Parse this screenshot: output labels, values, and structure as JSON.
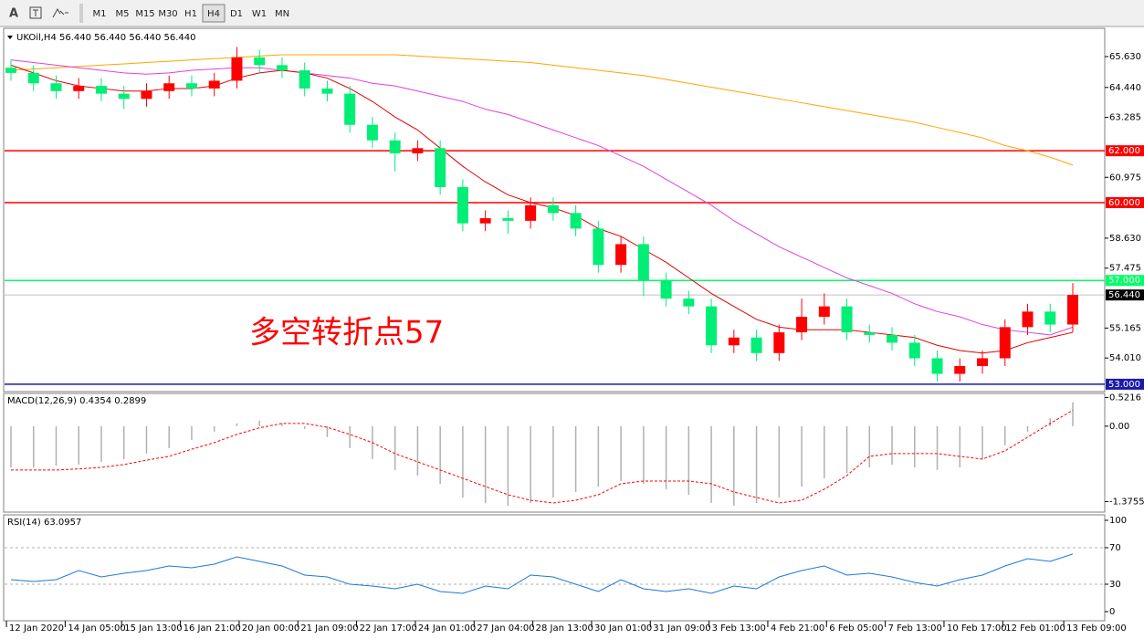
{
  "toolbar": {
    "font_tool": "A",
    "timeframes": [
      "M1",
      "M5",
      "M15",
      "M30",
      "H1",
      "H4",
      "D1",
      "W1",
      "MN"
    ],
    "active": "H4"
  },
  "chart_data": [
    {
      "type": "candlestick",
      "title": "UKOil,H4 56.440 56.440 56.440 56.440",
      "annotation": "多空转折点57",
      "annotation_color": "#ff0000",
      "up_color": "#ff0000",
      "down_color": "#00ee76",
      "open": [
        65.2,
        65.0,
        64.6,
        64.3,
        64.5,
        64.2,
        64.0,
        64.3,
        64.6,
        64.4,
        64.7,
        65.6,
        65.3,
        65.1,
        64.4,
        64.2,
        63.0,
        62.4,
        61.9,
        62.1,
        60.6,
        59.2,
        59.4,
        59.3,
        59.9,
        59.6,
        59.0,
        57.6,
        58.4,
        57.0,
        56.3,
        56.0,
        54.5,
        54.8,
        54.2,
        55.0,
        55.6,
        56.0,
        55.0,
        54.9,
        54.6,
        54.0,
        53.4,
        53.7,
        54.0,
        55.2,
        55.8,
        55.3
      ],
      "high": [
        65.5,
        65.3,
        64.9,
        64.8,
        64.8,
        64.5,
        64.6,
        64.9,
        64.9,
        65.0,
        66.0,
        65.9,
        65.6,
        65.4,
        64.7,
        64.5,
        63.3,
        62.7,
        62.4,
        62.4,
        60.9,
        59.7,
        59.7,
        60.2,
        60.2,
        59.9,
        59.3,
        58.7,
        58.7,
        57.3,
        56.6,
        56.3,
        55.1,
        55.1,
        55.3,
        56.3,
        56.5,
        56.3,
        55.3,
        55.2,
        54.9,
        54.3,
        54.0,
        54.3,
        55.5,
        56.1,
        56.1,
        56.9
      ],
      "low": [
        64.7,
        64.3,
        64.0,
        64.0,
        63.9,
        63.6,
        63.7,
        64.0,
        64.1,
        64.1,
        64.4,
        65.0,
        64.8,
        64.1,
        63.9,
        62.7,
        62.1,
        61.2,
        61.6,
        60.3,
        58.9,
        58.9,
        58.8,
        59.0,
        59.3,
        58.7,
        57.3,
        57.3,
        56.4,
        56.0,
        55.7,
        54.2,
        54.2,
        53.9,
        53.9,
        54.7,
        55.3,
        54.7,
        54.6,
        54.3,
        53.7,
        53.1,
        53.1,
        53.4,
        53.7,
        54.9,
        55.0,
        55.0
      ],
      "close": [
        65.0,
        64.6,
        64.3,
        64.5,
        64.2,
        64.0,
        64.3,
        64.6,
        64.4,
        64.7,
        65.6,
        65.3,
        65.1,
        64.4,
        64.2,
        63.0,
        62.4,
        61.9,
        62.1,
        60.6,
        59.2,
        59.4,
        59.3,
        59.9,
        59.6,
        59.0,
        57.6,
        58.4,
        57.0,
        56.3,
        56.0,
        54.5,
        54.8,
        54.2,
        55.0,
        55.6,
        56.0,
        55.0,
        54.9,
        54.6,
        54.0,
        53.4,
        53.7,
        54.0,
        55.2,
        55.8,
        55.3,
        56.44
      ],
      "series": [
        {
          "color": "#ffa500",
          "values": [
            65.1,
            65.15,
            65.2,
            65.25,
            65.3,
            65.35,
            65.4,
            65.45,
            65.5,
            65.55,
            65.6,
            65.65,
            65.7,
            65.7,
            65.7,
            65.7,
            65.7,
            65.7,
            65.65,
            65.6,
            65.55,
            65.5,
            65.45,
            65.4,
            65.3,
            65.2,
            65.1,
            65.0,
            64.9,
            64.75,
            64.6,
            64.45,
            64.3,
            64.15,
            64.0,
            63.85,
            63.7,
            63.55,
            63.4,
            63.25,
            63.1,
            62.9,
            62.7,
            62.5,
            62.2,
            62.0,
            61.75,
            61.45
          ]
        },
        {
          "color": "#e040e0",
          "values": [
            65.5,
            65.4,
            65.3,
            65.2,
            65.1,
            65.0,
            64.95,
            65.0,
            65.1,
            65.15,
            65.2,
            65.2,
            65.1,
            65.0,
            64.9,
            64.8,
            64.6,
            64.5,
            64.3,
            64.1,
            63.9,
            63.6,
            63.4,
            63.1,
            62.8,
            62.5,
            62.2,
            61.8,
            61.4,
            60.9,
            60.4,
            59.9,
            59.3,
            58.8,
            58.3,
            57.9,
            57.5,
            57.1,
            56.8,
            56.5,
            56.1,
            55.8,
            55.6,
            55.3,
            55.1,
            55.0,
            54.9,
            55.2
          ]
        },
        {
          "color": "#e00000",
          "values": [
            65.3,
            65.0,
            64.7,
            64.5,
            64.4,
            64.3,
            64.3,
            64.4,
            64.4,
            64.5,
            64.8,
            65.0,
            65.1,
            65.0,
            64.8,
            64.4,
            63.9,
            63.3,
            62.8,
            62.1,
            61.4,
            60.8,
            60.3,
            60.0,
            59.8,
            59.5,
            59.0,
            58.7,
            58.2,
            57.7,
            57.1,
            56.5,
            56.0,
            55.5,
            55.2,
            55.1,
            55.1,
            55.1,
            55.0,
            54.9,
            54.8,
            54.5,
            54.3,
            54.2,
            54.3,
            54.6,
            54.8,
            55.0
          ]
        }
      ],
      "hlines": [
        {
          "value": 62,
          "label": "62.000",
          "color": "#ff0000"
        },
        {
          "value": 60,
          "label": "60.000",
          "color": "#ff0000"
        },
        {
          "value": 57,
          "label": "57.000",
          "color": "#00ff66"
        },
        {
          "value": 53,
          "label": "53.000",
          "color": "#1a1aa6"
        }
      ],
      "current_price": {
        "value": 56.44,
        "label": "56.440"
      },
      "ylim": [
        52.75,
        66.65
      ],
      "yticks": [
        {
          "value": 65.63,
          "label": "65.630"
        },
        {
          "value": 64.44,
          "label": "64.440"
        },
        {
          "value": 63.285,
          "label": "63.285"
        },
        {
          "value": 60.975,
          "label": "60.975"
        },
        {
          "value": 58.63,
          "label": "58.630"
        },
        {
          "value": 57.475,
          "label": "57.475"
        },
        {
          "value": 55.165,
          "label": "55.165"
        },
        {
          "value": 54.01,
          "label": "54.010"
        }
      ],
      "xticks": [
        {
          "value": -0.2,
          "label": "12 Jan 2020"
        },
        {
          "value": 2.4,
          "label": "14 Jan 05:00"
        },
        {
          "value": 4.9,
          "label": "15 Jan 13:00"
        },
        {
          "value": 7.5,
          "label": "16 Jan 21:00"
        },
        {
          "value": 10.1,
          "label": "20 Jan 00:00"
        },
        {
          "value": 12.7,
          "label": "21 Jan 09:00"
        },
        {
          "value": 15.3,
          "label": "22 Jan 17:00"
        },
        {
          "value": 17.9,
          "label": "24 Jan 01:00"
        },
        {
          "value": 20.5,
          "label": "27 Jan 04:00"
        },
        {
          "value": 23.1,
          "label": "28 Jan 13:00"
        },
        {
          "value": 25.7,
          "label": "30 Jan 01:00"
        },
        {
          "value": 28.3,
          "label": "31 Jan 09:00"
        },
        {
          "value": 30.9,
          "label": "3 Feb 13:00"
        },
        {
          "value": 33.5,
          "label": "4 Feb 21:00"
        },
        {
          "value": 36.1,
          "label": "6 Feb 05:00"
        },
        {
          "value": 38.7,
          "label": "7 Feb 13:00"
        },
        {
          "value": 41.3,
          "label": "10 Feb 17:00"
        },
        {
          "value": 43.9,
          "label": "12 Feb 01:00"
        },
        {
          "value": 46.6,
          "label": "13 Feb 09:00"
        }
      ]
    },
    {
      "type": "macd",
      "title": "MACD(12,26,9) 0.4354 0.2899",
      "histogram": {
        "color": "#b0b0b0",
        "values": [
          -0.75,
          -0.75,
          -0.72,
          -0.7,
          -0.65,
          -0.6,
          -0.5,
          -0.4,
          -0.25,
          -0.1,
          0.05,
          0.1,
          0.05,
          -0.05,
          -0.2,
          -0.4,
          -0.6,
          -0.8,
          -0.9,
          -1.05,
          -1.3,
          -1.4,
          -1.45,
          -1.4,
          -1.3,
          -1.2,
          -1.1,
          -1.0,
          -1.05,
          -1.15,
          -1.25,
          -1.4,
          -1.45,
          -1.4,
          -1.3,
          -1.1,
          -0.95,
          -0.85,
          -0.75,
          -0.7,
          -0.75,
          -0.8,
          -0.75,
          -0.6,
          -0.35,
          -0.1,
          0.15,
          0.4354
        ]
      },
      "signal": {
        "color": "#ff0000",
        "values": [
          -0.8,
          -0.8,
          -0.8,
          -0.78,
          -0.75,
          -0.7,
          -0.62,
          -0.55,
          -0.42,
          -0.3,
          -0.15,
          -0.03,
          0.05,
          0.05,
          -0.02,
          -0.15,
          -0.3,
          -0.5,
          -0.65,
          -0.8,
          -0.95,
          -1.1,
          -1.25,
          -1.35,
          -1.4,
          -1.35,
          -1.25,
          -1.05,
          -1.0,
          -1.0,
          -1.0,
          -1.05,
          -1.2,
          -1.3,
          -1.4,
          -1.35,
          -1.15,
          -0.9,
          -0.55,
          -0.5,
          -0.5,
          -0.5,
          -0.55,
          -0.6,
          -0.45,
          -0.2,
          0.05,
          0.2899
        ]
      },
      "ylim": [
        -1.55,
        0.58
      ],
      "yticks": [
        0.5216,
        {
          "value": 0,
          "label": "0.00"
        },
        -1.3755
      ]
    },
    {
      "type": "line",
      "title": "RSI(14) 63.0957",
      "color": "#1e78d8",
      "values": [
        35,
        33,
        35,
        45,
        38,
        42,
        45,
        50,
        48,
        52,
        60,
        55,
        50,
        40,
        38,
        30,
        28,
        25,
        30,
        22,
        20,
        28,
        25,
        40,
        38,
        30,
        22,
        35,
        25,
        22,
        25,
        20,
        28,
        25,
        38,
        45,
        50,
        40,
        42,
        38,
        32,
        28,
        35,
        40,
        50,
        58,
        55,
        63.0957
      ],
      "ylim": [
        -9,
        105
      ],
      "yticks": [
        0,
        30,
        70,
        100
      ],
      "levels": [
        30,
        70
      ]
    }
  ]
}
